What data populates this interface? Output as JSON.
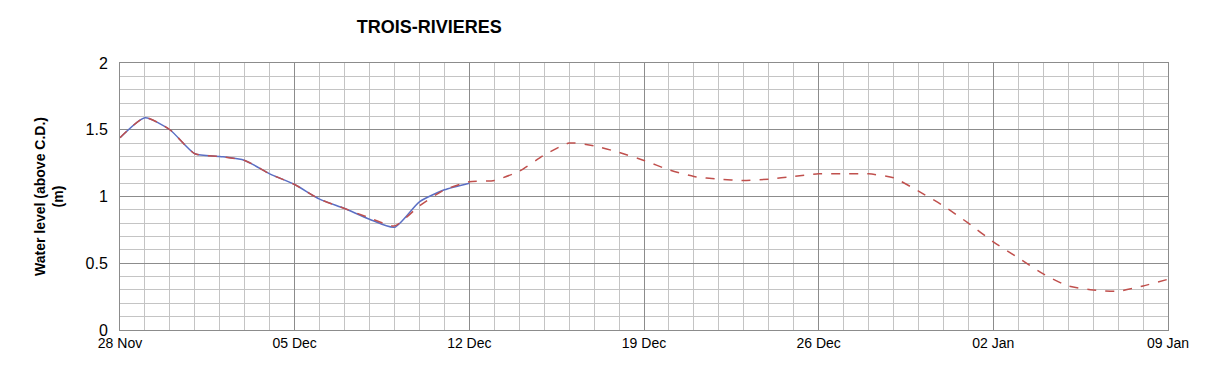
{
  "chart_data": {
    "type": "line",
    "title": "TROIS-RIVIERES",
    "y_label": "Water level (above C.D.)\n(m)",
    "categories": [
      "28 Nov",
      null,
      null,
      null,
      null,
      null,
      null,
      "05 Dec",
      null,
      null,
      null,
      null,
      null,
      null,
      "12 Dec",
      null,
      null,
      null,
      null,
      null,
      null,
      "19 Dec",
      null,
      null,
      null,
      null,
      null,
      null,
      "26 Dec",
      null,
      null,
      null,
      null,
      null,
      null,
      "02 Jan",
      null,
      null,
      null,
      null,
      null,
      null,
      "09 Jan"
    ],
    "series": [
      {
        "color": "#5b6fc4",
        "line_style": "solid",
        "values": [
          1.44,
          1.59,
          1.5,
          1.32,
          1.3,
          1.27,
          1.17,
          1.09,
          0.98,
          0.91,
          0.83,
          0.77,
          0.96,
          1.05,
          1.1,
          null,
          null,
          null,
          null,
          null,
          null,
          null,
          null,
          null,
          null,
          null,
          null,
          null,
          null,
          null,
          null,
          null,
          null,
          null,
          null,
          null,
          null,
          null,
          null,
          null,
          null,
          null,
          null
        ]
      },
      {
        "color": "#c0504d",
        "line_style": "dashed",
        "values": [
          1.44,
          1.59,
          1.5,
          1.32,
          1.3,
          1.27,
          1.17,
          1.09,
          0.98,
          0.91,
          0.84,
          0.78,
          0.93,
          1.05,
          1.11,
          1.12,
          1.19,
          1.31,
          1.4,
          1.38,
          1.33,
          1.27,
          1.2,
          1.15,
          1.13,
          1.12,
          1.13,
          1.15,
          1.17,
          1.17,
          1.17,
          1.14,
          1.04,
          0.93,
          0.8,
          0.66,
          0.54,
          0.42,
          0.33,
          0.3,
          0.29,
          0.33,
          0.38
        ]
      }
    ],
    "ylim": [
      0,
      2
    ],
    "yticks": [
      0,
      0.5,
      1,
      1.5,
      2
    ],
    "grid": true
  }
}
